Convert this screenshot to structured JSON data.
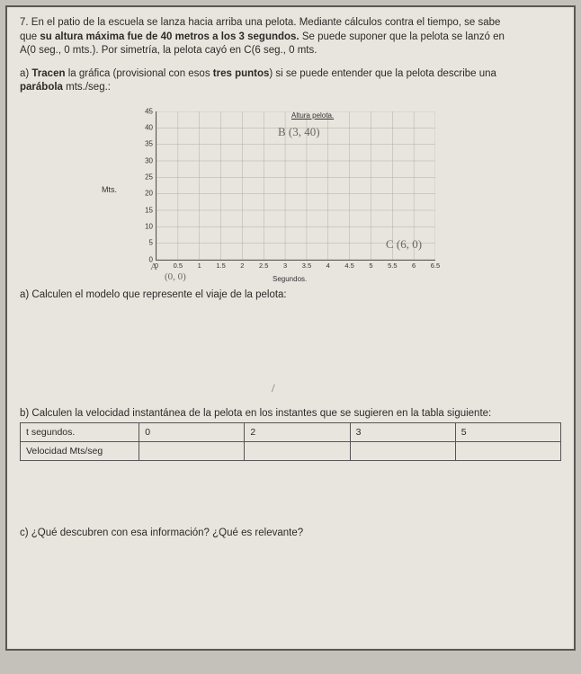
{
  "problem": {
    "number": "7.",
    "line1_a": "En el patio de la escuela se lanza hacia arriba una pelota. Mediante cálculos contra el tiempo, se sabe",
    "line2_a": "que ",
    "line2_bold": "su altura máxima fue de 40 metros a los 3 segundos.",
    "line2_b": " Se puede suponer que la pelota se lanzó en",
    "line3": "A(0 seg., 0 mts.). Por simetría, la pelota cayó en C(6 seg., 0 mts."
  },
  "part_a_trace": {
    "prefix": "a) ",
    "bold1": "Tracen",
    "mid": " la gráfica (provisional con esos ",
    "bold2": "tres puntos",
    "rest": ") si se puede entender que la pelota describe una",
    "line2_bold": "parábola",
    "line2_rest": " mts./seg.:"
  },
  "chart": {
    "title_inside": "Altura pelota.",
    "y_label": "Mts.",
    "x_label": "Segundos.",
    "y_ticks": [
      "45",
      "40",
      "35",
      "30",
      "25",
      "20",
      "15",
      "10",
      "5",
      "0"
    ],
    "x_ticks": [
      "0",
      "0.5",
      "1",
      "1.5",
      "2",
      "2.5",
      "3",
      "3.5",
      "4",
      "4.5",
      "5",
      "5.5",
      "6",
      "6.5"
    ],
    "grid_color": "#b0b0a8",
    "axis_color": "#555",
    "xlim": [
      0,
      6.5
    ],
    "ylim": [
      0,
      45
    ]
  },
  "handwritten": {
    "point_b": "B (3, 40)",
    "point_c": "C (6, 0)",
    "point_a_origin": "(0, 0)",
    "point_a_mark": "A",
    "slash": "/"
  },
  "part_a_model": "a) Calculen el modelo que represente el viaje de la pelota:",
  "part_b": "b) Calculen la velocidad instantánea de la pelota en los instantes que se sugieren en la tabla siguiente:",
  "table": {
    "row1": [
      "t segundos.",
      "0",
      "2",
      "3",
      "5"
    ],
    "row2": [
      "Velocidad Mts/seg",
      "",
      "",
      "",
      ""
    ]
  },
  "part_c": "c) ¿Qué descubren con esa información? ¿Qué es relevante?"
}
